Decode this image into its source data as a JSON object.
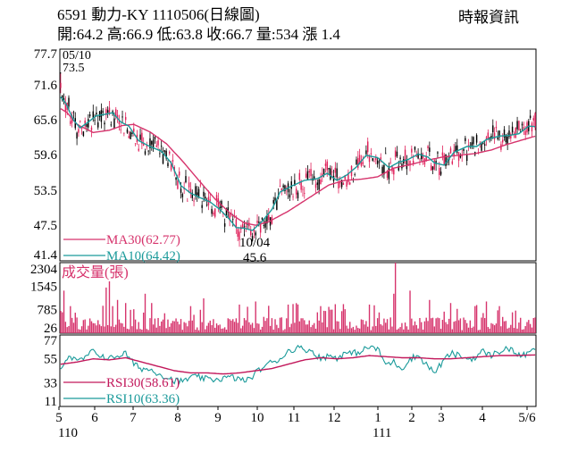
{
  "header": {
    "title": "6591  動力-KY 1110506(日線圖)",
    "source": "時報資訊",
    "ohlc": "開:64.2 高:66.9 低:63.8 收:66.7 量:534 漲 1.4"
  },
  "colors": {
    "up_candle": "#e0205a",
    "down_candle": "#000000",
    "ma30": "#d6336c",
    "ma10": "#1a9a9a",
    "volume": "#d6336c",
    "rsi30": "#c2185b",
    "rsi10": "#1a9a9a"
  },
  "chart_data": [
    {
      "type": "candlestick",
      "x_axis": {
        "ticks": [
          "5",
          "6",
          "7",
          "8",
          "9",
          "10",
          "11",
          "12",
          "1",
          "2",
          "3",
          "4",
          "5/6"
        ],
        "years": [
          "110",
          "111"
        ]
      },
      "y_axis": {
        "ticks": [
          77.7,
          71.6,
          65.6,
          59.6,
          53.5,
          47.5,
          41.4
        ],
        "ylim": [
          41.4,
          77.7
        ]
      },
      "annotations": [
        {
          "date": "05/10",
          "value": "73.5",
          "text": [
            "05/10",
            "73.5"
          ]
        },
        {
          "date": "10/04",
          "value": "45.6",
          "text": [
            "10/04",
            "45.6"
          ]
        }
      ],
      "legend": [
        {
          "name": "MA30",
          "value": 62.77,
          "label": "MA30(62.77)"
        },
        {
          "name": "MA10",
          "value": 64.42,
          "label": "MA10(64.42)"
        }
      ],
      "ma30_key": [
        [
          0,
          67.5
        ],
        [
          4,
          66.8
        ],
        [
          10,
          64.8
        ],
        [
          20,
          63.4
        ],
        [
          30,
          63.8
        ],
        [
          38,
          64.6
        ],
        [
          45,
          64.8
        ],
        [
          55,
          63.5
        ],
        [
          65,
          61.5
        ],
        [
          75,
          58.5
        ],
        [
          85,
          55.2
        ],
        [
          95,
          52.0
        ],
        [
          105,
          49.4
        ],
        [
          113,
          47.9
        ],
        [
          120,
          47.5
        ],
        [
          128,
          48.1
        ],
        [
          140,
          49.9
        ],
        [
          155,
          52.6
        ],
        [
          165,
          54.4
        ],
        [
          175,
          55.2
        ],
        [
          185,
          55.4
        ],
        [
          195,
          55.8
        ],
        [
          205,
          57.3
        ],
        [
          215,
          57.9
        ],
        [
          225,
          58.6
        ],
        [
          235,
          59.2
        ],
        [
          245,
          59.5
        ],
        [
          255,
          59.8
        ],
        [
          265,
          60.4
        ],
        [
          275,
          61.4
        ],
        [
          285,
          62.2
        ],
        [
          292,
          62.77
        ]
      ],
      "ma10_key": [
        [
          0,
          69.5
        ],
        [
          3,
          68.5
        ],
        [
          8,
          65.5
        ],
        [
          12,
          64.2
        ],
        [
          17,
          65.2
        ],
        [
          22,
          66.3
        ],
        [
          27,
          66.5
        ],
        [
          32,
          66.8
        ],
        [
          37,
          65.2
        ],
        [
          42,
          64.5
        ],
        [
          48,
          62.0
        ],
        [
          55,
          61.0
        ],
        [
          62,
          60.2
        ],
        [
          68,
          58.2
        ],
        [
          74,
          54.3
        ],
        [
          80,
          53.0
        ],
        [
          86,
          52.2
        ],
        [
          92,
          51.5
        ],
        [
          98,
          50.2
        ],
        [
          104,
          48.5
        ],
        [
          108,
          47.1
        ],
        [
          113,
          47.0
        ],
        [
          118,
          46.6
        ],
        [
          124,
          48.2
        ],
        [
          130,
          50.2
        ],
        [
          135,
          53.2
        ],
        [
          142,
          54.2
        ],
        [
          150,
          55.2
        ],
        [
          158,
          55.5
        ],
        [
          164,
          56.4
        ],
        [
          170,
          55.2
        ],
        [
          176,
          56.1
        ],
        [
          182,
          57.5
        ],
        [
          188,
          59.5
        ],
        [
          195,
          59.1
        ],
        [
          202,
          57.4
        ],
        [
          208,
          58.3
        ],
        [
          214,
          58.8
        ],
        [
          220,
          59.7
        ],
        [
          226,
          59.2
        ],
        [
          230,
          58.2
        ],
        [
          236,
          57.8
        ],
        [
          242,
          60.0
        ],
        [
          250,
          61.0
        ],
        [
          256,
          61.0
        ],
        [
          262,
          62.2
        ],
        [
          270,
          62.8
        ],
        [
          276,
          62.9
        ],
        [
          282,
          63.2
        ],
        [
          288,
          64.5
        ],
        [
          292,
          64.42
        ]
      ]
    },
    {
      "type": "bar",
      "label": "成交量(張)",
      "y_axis": {
        "ticks": [
          2304,
          1545,
          785,
          26
        ],
        "ylim": [
          26,
          2304
        ]
      }
    },
    {
      "type": "line",
      "y_axis": {
        "ticks": [
          77,
          55,
          33,
          11
        ],
        "ylim": [
          11,
          77
        ]
      },
      "legend": [
        {
          "name": "RSI30",
          "value": 58.61,
          "label": "RSI30(58.61)"
        },
        {
          "name": "RSI10",
          "value": 63.36,
          "label": "RSI10(63.36)"
        }
      ],
      "rsi30_key": [
        [
          0,
          50
        ],
        [
          10,
          52
        ],
        [
          20,
          55
        ],
        [
          30,
          54
        ],
        [
          40,
          56
        ],
        [
          50,
          52
        ],
        [
          60,
          48
        ],
        [
          70,
          44
        ],
        [
          80,
          42
        ],
        [
          90,
          42
        ],
        [
          100,
          41
        ],
        [
          110,
          42
        ],
        [
          120,
          44
        ],
        [
          130,
          46
        ],
        [
          140,
          50
        ],
        [
          150,
          54
        ],
        [
          160,
          56
        ],
        [
          170,
          55
        ],
        [
          180,
          56
        ],
        [
          190,
          58
        ],
        [
          200,
          57
        ],
        [
          210,
          56
        ],
        [
          220,
          56
        ],
        [
          230,
          55
        ],
        [
          240,
          55
        ],
        [
          250,
          56
        ],
        [
          260,
          57
        ],
        [
          270,
          58
        ],
        [
          280,
          58
        ],
        [
          292,
          58.61
        ]
      ],
      "rsi10_key": [
        [
          0,
          48
        ],
        [
          5,
          58
        ],
        [
          10,
          52
        ],
        [
          15,
          56
        ],
        [
          20,
          62
        ],
        [
          25,
          58
        ],
        [
          30,
          55
        ],
        [
          35,
          58
        ],
        [
          40,
          60
        ],
        [
          45,
          50
        ],
        [
          50,
          46
        ],
        [
          55,
          45
        ],
        [
          60,
          42
        ],
        [
          65,
          38
        ],
        [
          70,
          35
        ],
        [
          75,
          34
        ],
        [
          80,
          38
        ],
        [
          85,
          38
        ],
        [
          90,
          36
        ],
        [
          95,
          36
        ],
        [
          100,
          37
        ],
        [
          105,
          38
        ],
        [
          110,
          36
        ],
        [
          115,
          35
        ],
        [
          120,
          42
        ],
        [
          125,
          48
        ],
        [
          130,
          52
        ],
        [
          135,
          55
        ],
        [
          140,
          62
        ],
        [
          145,
          65
        ],
        [
          150,
          64
        ],
        [
          155,
          62
        ],
        [
          160,
          55
        ],
        [
          165,
          58
        ],
        [
          170,
          56
        ],
        [
          175,
          60
        ],
        [
          180,
          60
        ],
        [
          185,
          62
        ],
        [
          190,
          66
        ],
        [
          195,
          64
        ],
        [
          200,
          50
        ],
        [
          205,
          52
        ],
        [
          210,
          46
        ],
        [
          215,
          55
        ],
        [
          220,
          58
        ],
        [
          225,
          50
        ],
        [
          230,
          42
        ],
        [
          235,
          52
        ],
        [
          240,
          60
        ],
        [
          245,
          58
        ],
        [
          250,
          55
        ],
        [
          255,
          56
        ],
        [
          260,
          62
        ],
        [
          265,
          58
        ],
        [
          270,
          62
        ],
        [
          275,
          65
        ],
        [
          280,
          60
        ],
        [
          285,
          58
        ],
        [
          292,
          63.36
        ]
      ]
    }
  ]
}
